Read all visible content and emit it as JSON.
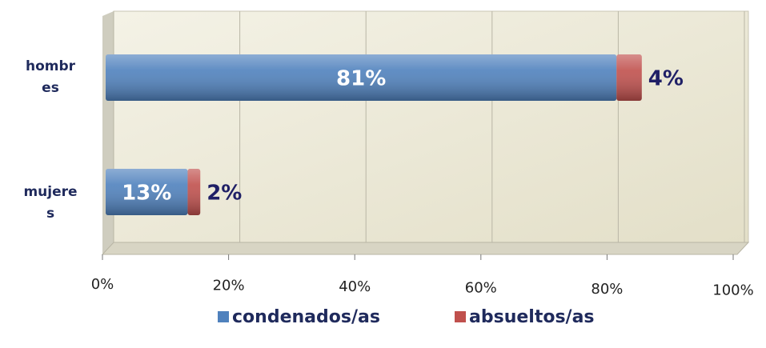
{
  "chart_data": {
    "type": "stacked-barh",
    "categories": [
      "hombres",
      "mujeres"
    ],
    "series": [
      {
        "name": "condenados/as",
        "color": "#4f81bd",
        "values": [
          81,
          13
        ],
        "value_labels": [
          "81%",
          "13%"
        ]
      },
      {
        "name": "absueltos/as",
        "color": "#c0504d",
        "values": [
          4,
          2
        ],
        "value_labels": [
          "4%",
          "2%"
        ]
      }
    ],
    "xlim": [
      0,
      100
    ],
    "xticks": [
      {
        "value": 0,
        "label": "0%"
      },
      {
        "value": 20,
        "label": "20%"
      },
      {
        "value": 40,
        "label": "40%"
      },
      {
        "value": 60,
        "label": "60%"
      },
      {
        "value": 80,
        "label": "80%"
      },
      {
        "value": 100,
        "label": "100%"
      }
    ],
    "grid": true,
    "legend": "bottom"
  }
}
